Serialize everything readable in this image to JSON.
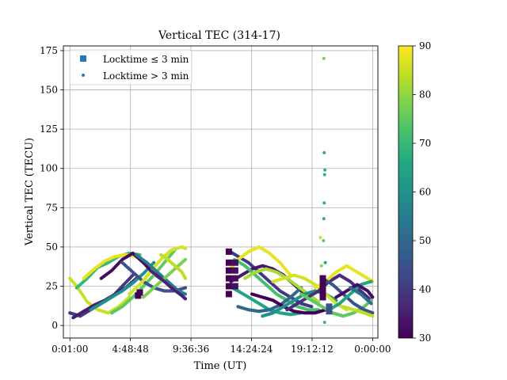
{
  "chart_data": {
    "type": "scatter",
    "title": "Vertical TEC (314-17)",
    "xlabel": "Time (UT)",
    "ylabel": "Vertical TEC (TECU)",
    "xlim": [
      -1800,
      87900
    ],
    "ylim": [
      -8,
      178
    ],
    "x_ticks": [
      {
        "value": 60,
        "label": "0:01:00"
      },
      {
        "value": 17328,
        "label": "4:48:48"
      },
      {
        "value": 34596,
        "label": "9:36:36"
      },
      {
        "value": 51864,
        "label": "14:24:24"
      },
      {
        "value": 69132,
        "label": "19:12:12"
      },
      {
        "value": 86400,
        "label": "0:00:00"
      }
    ],
    "y_ticks": [
      0,
      25,
      50,
      75,
      100,
      125,
      150,
      175
    ],
    "grid": true,
    "legend": {
      "position": "top-left",
      "entries": [
        {
          "label": "Locktime ≤ 3 min",
          "marker": "square",
          "color": "#2878b5"
        },
        {
          "label": "Locktime > 3 min",
          "marker": "dot",
          "color": "#2878b5"
        }
      ]
    },
    "colorbar": {
      "min": 30,
      "max": 90,
      "ticks": [
        30,
        40,
        50,
        60,
        70,
        80,
        90
      ],
      "colormap": "viridis"
    },
    "series": [
      {
        "elev_color": 40,
        "x": [
          60,
          3000,
          6000,
          9000,
          12000,
          15000,
          18000
        ],
        "y": [
          8,
          6,
          10,
          14,
          18,
          25,
          32
        ]
      },
      {
        "elev_color": 85,
        "x": [
          60,
          2000,
          5000,
          8000,
          11000,
          14000,
          17000
        ],
        "y": [
          30,
          25,
          15,
          10,
          8,
          12,
          18
        ]
      },
      {
        "elev_color": 35,
        "x": [
          1000,
          4000,
          7000,
          10000,
          13000,
          16000,
          19000
        ],
        "y": [
          5,
          9,
          13,
          16,
          20,
          24,
          30
        ]
      },
      {
        "elev_color": 70,
        "x": [
          2000,
          5000,
          8000,
          11000,
          14000,
          17000,
          20000
        ],
        "y": [
          24,
          30,
          37,
          40,
          44,
          46,
          45
        ]
      },
      {
        "elev_color": 88,
        "x": [
          4000,
          7000,
          10000,
          13000,
          16000,
          19000,
          22000
        ],
        "y": [
          30,
          36,
          41,
          44,
          45,
          44,
          40
        ]
      },
      {
        "elev_color": 60,
        "x": [
          6000,
          9000,
          12000,
          15000,
          18000,
          21000,
          24000
        ],
        "y": [
          10,
          14,
          18,
          22,
          27,
          33,
          40
        ]
      },
      {
        "elev_color": 32,
        "x": [
          9000,
          12000,
          15000,
          18000,
          21000,
          24000,
          27000
        ],
        "y": [
          30,
          35,
          42,
          46,
          40,
          33,
          28
        ]
      },
      {
        "elev_color": 75,
        "x": [
          12000,
          15000,
          18000,
          21000,
          24000,
          27000,
          30000
        ],
        "y": [
          8,
          12,
          18,
          25,
          32,
          40,
          48
        ]
      },
      {
        "elev_color": 45,
        "x": [
          15000,
          18000,
          21000,
          24000,
          27000,
          30000,
          33000
        ],
        "y": [
          40,
          34,
          28,
          24,
          22,
          22,
          24
        ]
      },
      {
        "elev_color": 86,
        "x": [
          17000,
          20000,
          23000,
          26000,
          29000,
          32000,
          33000
        ],
        "y": [
          20,
          26,
          34,
          42,
          48,
          50,
          49
        ]
      },
      {
        "elev_color": 55,
        "x": [
          19000,
          22000,
          25000,
          28000,
          31000,
          33000
        ],
        "y": [
          45,
          40,
          34,
          28,
          22,
          20
        ]
      },
      {
        "elev_color": 78,
        "x": [
          21000,
          24000,
          27000,
          30000,
          33000
        ],
        "y": [
          18,
          24,
          30,
          36,
          42
        ]
      },
      {
        "elev_color": 36,
        "x": [
          23000,
          26000,
          29000,
          32000,
          33000
        ],
        "y": [
          35,
          30,
          24,
          19,
          17
        ]
      },
      {
        "elev_color": 84,
        "x": [
          26000,
          28000,
          30000,
          32000,
          33000
        ],
        "y": [
          45,
          42,
          38,
          34,
          30
        ]
      },
      {
        "elev_color": 40,
        "x": [
          45000,
          48000,
          51000,
          54000,
          57000,
          60000,
          63000,
          66000,
          69000
        ],
        "y": [
          48,
          44,
          40,
          34,
          28,
          22,
          18,
          14,
          12
        ]
      },
      {
        "elev_color": 88,
        "x": [
          45500,
          48000,
          51000,
          54000,
          57000,
          60000,
          63000
        ],
        "y": [
          35,
          42,
          47,
          50,
          46,
          40,
          32
        ]
      },
      {
        "elev_color": 65,
        "x": [
          45500,
          48000,
          51000,
          54000,
          57000,
          60000,
          63000,
          66000
        ],
        "y": [
          25,
          22,
          18,
          14,
          10,
          8,
          7,
          8
        ]
      },
      {
        "elev_color": 34,
        "x": [
          46000,
          49000,
          52000,
          55000,
          58000,
          61000,
          64000,
          67000
        ],
        "y": [
          28,
          32,
          36,
          38,
          36,
          32,
          26,
          20
        ]
      },
      {
        "elev_color": 72,
        "x": [
          47000,
          50000,
          53000,
          56000,
          59000,
          62000,
          65000,
          68000,
          71000
        ],
        "y": [
          42,
          38,
          32,
          26,
          20,
          16,
          12,
          10,
          10
        ]
      },
      {
        "elev_color": 50,
        "x": [
          48000,
          51000,
          54000,
          57000,
          60000,
          63000,
          66000
        ],
        "y": [
          12,
          10,
          9,
          10,
          13,
          18,
          24
        ]
      },
      {
        "elev_color": 82,
        "x": [
          50000,
          53000,
          56000,
          59000,
          62000,
          65000,
          68000,
          71000
        ],
        "y": [
          30,
          34,
          36,
          34,
          30,
          25,
          20,
          15
        ]
      },
      {
        "elev_color": 30,
        "x": [
          52000,
          55000,
          58000,
          61000,
          64000,
          67000,
          70000,
          73000
        ],
        "y": [
          20,
          18,
          16,
          12,
          9,
          8,
          8,
          10
        ]
      },
      {
        "elev_color": 60,
        "x": [
          55000,
          58000,
          61000,
          64000,
          67000,
          70000,
          73000,
          76000
        ],
        "y": [
          6,
          8,
          12,
          16,
          20,
          22,
          20,
          16
        ]
      },
      {
        "elev_color": 86,
        "x": [
          58000,
          61000,
          64000,
          67000,
          70000,
          73000,
          76000,
          79000
        ],
        "y": [
          28,
          30,
          32,
          30,
          26,
          20,
          14,
          10
        ]
      },
      {
        "elev_color": 38,
        "x": [
          62000,
          65000,
          68000,
          71000,
          74000,
          77000,
          80000,
          83000,
          86000
        ],
        "y": [
          10,
          14,
          18,
          22,
          28,
          32,
          28,
          22,
          16
        ]
      },
      {
        "elev_color": 75,
        "x": [
          66000,
          69000,
          72000,
          75000,
          78000,
          81000,
          84000,
          86000
        ],
        "y": [
          20,
          16,
          12,
          8,
          6,
          8,
          12,
          16
        ]
      },
      {
        "elev_color": 88,
        "x": [
          70000,
          73000,
          76000,
          79000,
          82000,
          85000,
          86400
        ],
        "y": [
          24,
          28,
          34,
          38,
          34,
          30,
          28
        ]
      },
      {
        "elev_color": 45,
        "x": [
          72000,
          75000,
          78000,
          81000,
          84000,
          86400
        ],
        "y": [
          30,
          26,
          20,
          14,
          10,
          8
        ]
      },
      {
        "elev_color": 65,
        "x": [
          74000,
          77000,
          80000,
          83000,
          86000
        ],
        "y": [
          10,
          14,
          20,
          26,
          28
        ]
      },
      {
        "elev_color": 32,
        "x": [
          76000,
          79000,
          82000,
          85000,
          86400
        ],
        "y": [
          18,
          22,
          26,
          22,
          18
        ]
      },
      {
        "elev_color": 84,
        "x": [
          78000,
          81000,
          84000,
          86400
        ],
        "y": [
          12,
          10,
          8,
          6
        ]
      },
      {
        "elev_color": 52,
        "x": [
          80000,
          83000,
          86000
        ],
        "y": [
          24,
          20,
          14
        ]
      }
    ],
    "locktime_le_3min": [
      {
        "elev_color": 30,
        "x": [
          19500,
          20000
        ],
        "y": [
          19,
          21
        ]
      },
      {
        "elev_color": 30,
        "x": [
          45400,
          45400,
          45400,
          45400,
          45400,
          45400
        ],
        "y": [
          20,
          25,
          30,
          35,
          40,
          47
        ]
      },
      {
        "elev_color": 32,
        "x": [
          47200,
          47200,
          47200,
          47200
        ],
        "y": [
          25,
          30,
          35,
          40
        ]
      },
      {
        "elev_color": 30,
        "x": [
          72200,
          72200,
          72200,
          72200
        ],
        "y": [
          18,
          22,
          26,
          30
        ]
      },
      {
        "elev_color": 45,
        "x": [
          74000,
          74000
        ],
        "y": [
          9,
          12
        ]
      }
    ],
    "isolated_points": [
      {
        "elev_color": 78,
        "x": 72500,
        "y": 170
      },
      {
        "elev_color": 68,
        "x": 72600,
        "y": 110
      },
      {
        "elev_color": 68,
        "x": 72800,
        "y": 99
      },
      {
        "elev_color": 68,
        "x": 72700,
        "y": 96
      },
      {
        "elev_color": 68,
        "x": 72600,
        "y": 78
      },
      {
        "elev_color": 68,
        "x": 72500,
        "y": 68
      },
      {
        "elev_color": 85,
        "x": 71500,
        "y": 56
      },
      {
        "elev_color": 75,
        "x": 72400,
        "y": 54
      },
      {
        "elev_color": 65,
        "x": 72900,
        "y": 40
      },
      {
        "elev_color": 80,
        "x": 71800,
        "y": 38
      },
      {
        "elev_color": 70,
        "x": 72700,
        "y": 2
      }
    ]
  }
}
